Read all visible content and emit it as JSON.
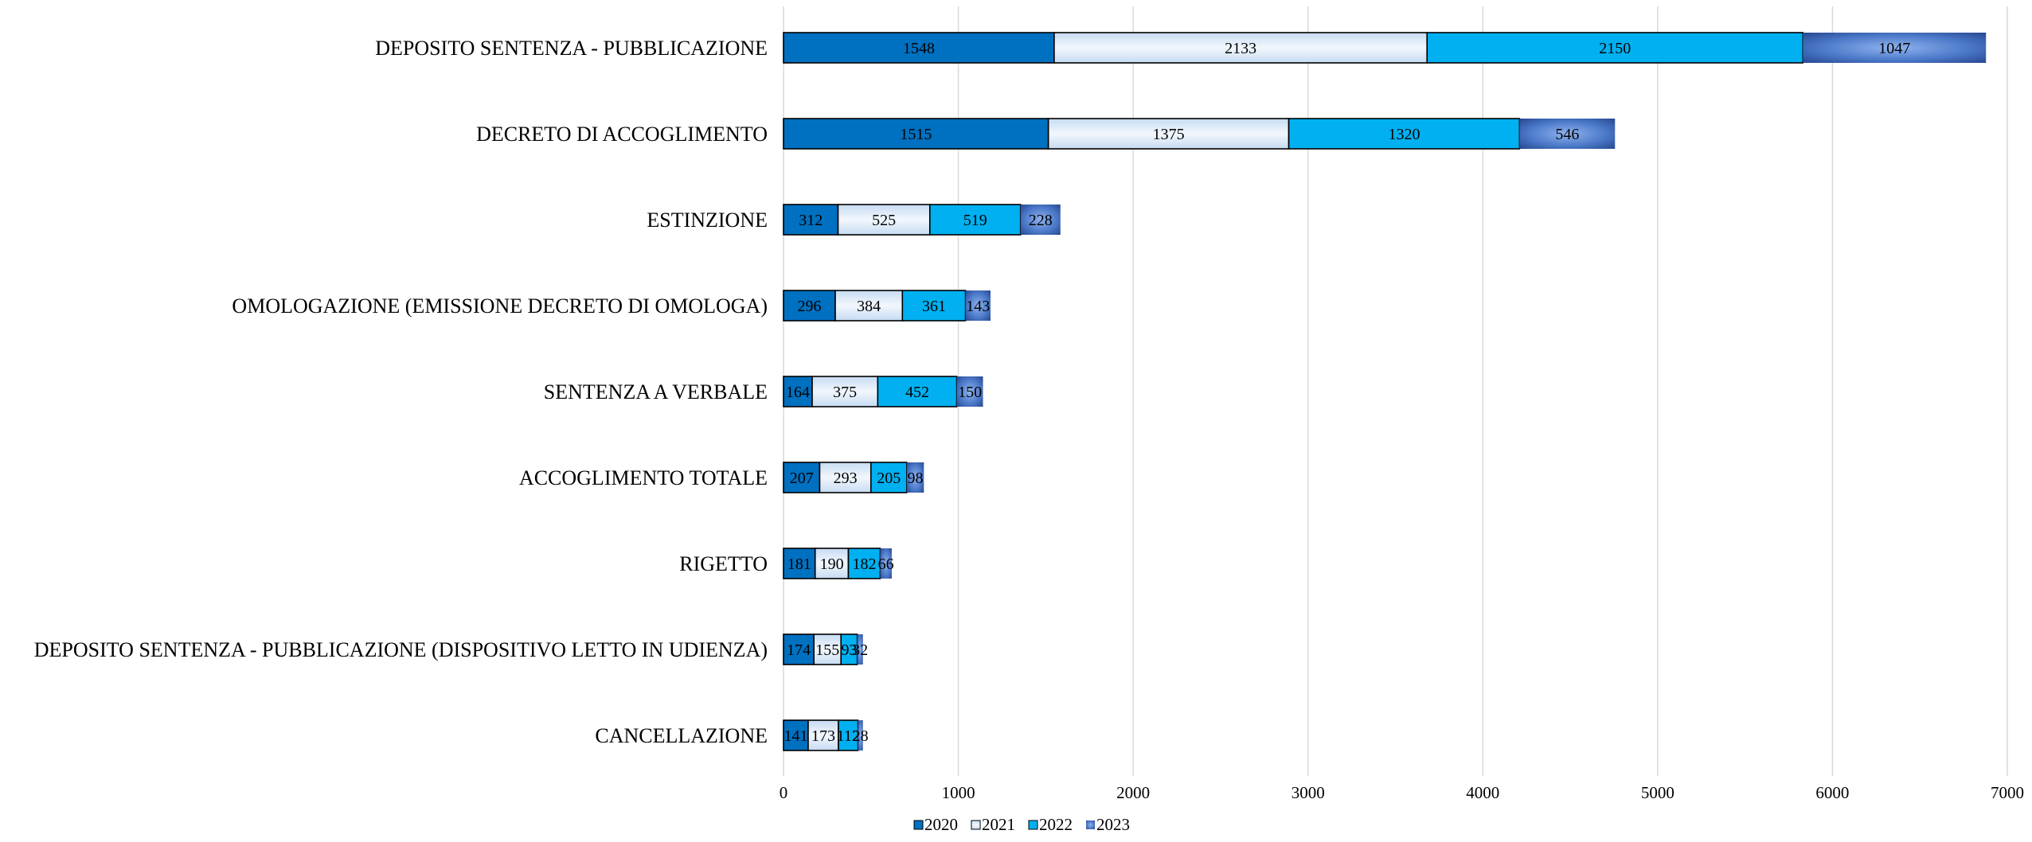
{
  "chart_data": {
    "type": "bar",
    "orientation": "horizontal",
    "stacked": true,
    "title": "",
    "xlabel": "",
    "ylabel": "",
    "categories": [
      "DEPOSITO SENTENZA - PUBBLICAZIONE",
      "DECRETO DI ACCOGLIMENTO",
      "ESTINZIONE",
      "OMOLOGAZIONE (EMISSIONE DECRETO DI OMOLOGA)",
      "SENTENZA A VERBALE",
      "ACCOGLIMENTO TOTALE",
      "RIGETTO",
      "DEPOSITO SENTENZA - PUBBLICAZIONE (DISPOSITIVO LETTO IN UDIENZA)",
      "CANCELLAZIONE"
    ],
    "series": [
      {
        "name": "2020",
        "color": "#0070C0",
        "values": [
          1548,
          1515,
          312,
          296,
          164,
          207,
          181,
          174,
          141
        ]
      },
      {
        "name": "2021",
        "color": "#DDEBF7",
        "values": [
          2133,
          1375,
          525,
          384,
          375,
          293,
          190,
          155,
          173
        ]
      },
      {
        "name": "2022",
        "color": "#00B0F0",
        "values": [
          2150,
          1320,
          519,
          361,
          452,
          205,
          182,
          93,
          112
        ]
      },
      {
        "name": "2023",
        "color": "#3A6BC4",
        "values": [
          1047,
          546,
          228,
          143,
          150,
          98,
          66,
          32,
          28
        ]
      }
    ],
    "xlim": [
      0,
      7000
    ],
    "xticks": [
      0,
      1000,
      2000,
      3000,
      4000,
      5000,
      6000,
      7000
    ],
    "grid": true,
    "legend_position": "bottom"
  }
}
